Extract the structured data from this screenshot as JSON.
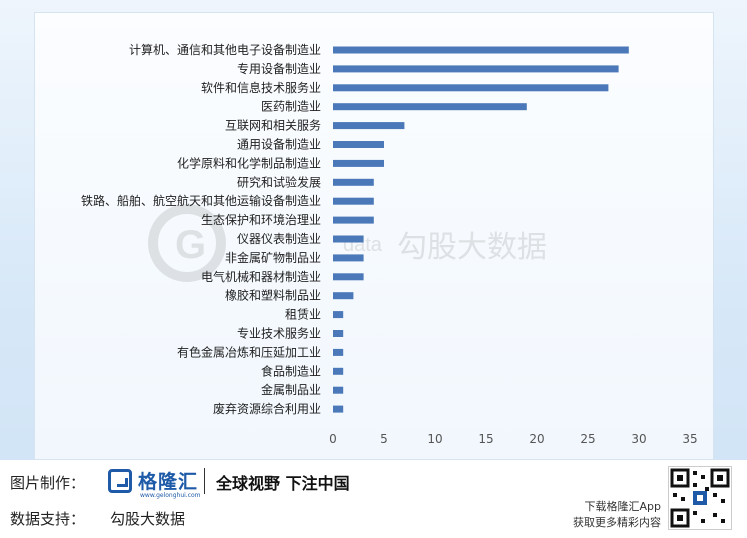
{
  "chart_data": {
    "type": "bar",
    "orientation": "horizontal",
    "categories": [
      "计算机、通信和其他电子设备制造业",
      "专用设备制造业",
      "软件和信息技术服务业",
      "医药制造业",
      "互联网和相关服务",
      "通用设备制造业",
      "化学原料和化学制品制造业",
      "研究和试验发展",
      "铁路、船舶、航空航天和其他运输设备制造业",
      "生态保护和环境治理业",
      "仪器仪表制造业",
      "非金属矿物制品业",
      "电气机械和器材制造业",
      "橡胶和塑料制品业",
      "租赁业",
      "专业技术服务业",
      "有色金属冶炼和压延加工业",
      "食品制造业",
      "金属制品业",
      "废弃资源综合利用业"
    ],
    "values": [
      29,
      28,
      27,
      19,
      7,
      5,
      5,
      4,
      4,
      4,
      3,
      3,
      3,
      2,
      1,
      1,
      1,
      1,
      1,
      1
    ],
    "xlim": [
      0,
      35
    ],
    "xticks": [
      "0",
      "5",
      "10",
      "15",
      "20",
      "25",
      "30",
      "35"
    ],
    "bar_color": "#4a78b8",
    "grid": false
  },
  "watermark": {
    "logo_text": "G",
    "data_text": "data",
    "brand_text": "勾股大数据"
  },
  "footer": {
    "made_by_label": "图片制作：",
    "brand_name": "格隆汇",
    "brand_url": "www.gelonghui.com",
    "slogan": "全球视野 下注中国",
    "support_label": "数据支持：",
    "support_value": "勾股大数据",
    "app_line1": "下载格隆汇App",
    "app_line2": "获取更多精彩内容",
    "qr_icon": "qr-code-icon"
  },
  "colors": {
    "background_top": "#eef5fc",
    "background_bottom": "#cfe3f5",
    "brand_blue": "#1e5aa8"
  }
}
